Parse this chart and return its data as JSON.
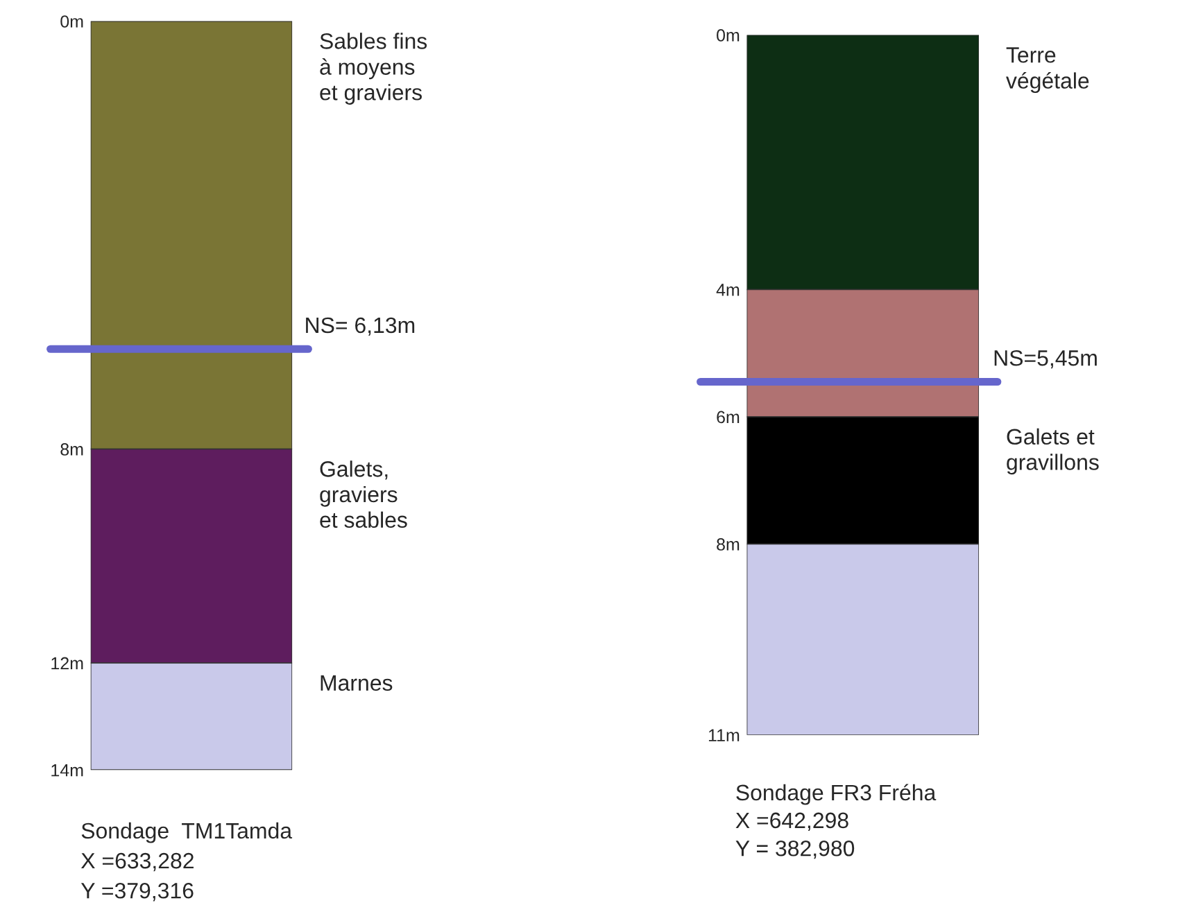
{
  "chart_data": [
    {
      "type": "bar",
      "stacked": true,
      "categories": [
        null
      ],
      "tick_labels": "y",
      "series": [
        {
          "name": "Sables fins\nà moyens\net graviers",
          "color": "#7a7535",
          "values": [
            8
          ]
        },
        {
          "name": "Galets,\ngraviers\net sables",
          "color": "#5e1d5e",
          "values": [
            4
          ]
        },
        {
          "name": "Marnes",
          "color": "#c9c9ea",
          "values": [
            2
          ]
        }
      ],
      "ylim": [
        14,
        0
      ],
      "yticks": [
        {
          "value": 0,
          "label": "0m"
        },
        {
          "value": 8,
          "label": "8m"
        },
        {
          "value": 12,
          "label": "12m"
        },
        {
          "value": 14,
          "label": "14m"
        }
      ],
      "ref_lines": [
        {
          "axis": "y",
          "value": 6.13,
          "label": "NS= 6,13m",
          "color": "#6666cc"
        }
      ],
      "annotations": [
        "Sondage  TM1Tamda",
        "X =633,282",
        "Y =379,316"
      ]
    },
    {
      "type": "bar",
      "stacked": true,
      "categories": [
        null
      ],
      "tick_labels": "y",
      "series": [
        {
          "name": "Terre\nvégétale",
          "color": "#0d2e14",
          "values": [
            4
          ]
        },
        {
          "color": "#b07272",
          "values": [
            2
          ]
        },
        {
          "name": "Galets et\ngravillons",
          "color": "#000000",
          "values": [
            2
          ]
        },
        {
          "color": "#c9c9ea",
          "values": [
            3
          ]
        }
      ],
      "ylim": [
        11,
        0
      ],
      "yticks": [
        {
          "value": 0,
          "label": "0m"
        },
        {
          "value": 4,
          "label": "4m"
        },
        {
          "value": 6,
          "label": "6m"
        },
        {
          "value": 8,
          "label": "8m"
        },
        {
          "value": 11,
          "label": "11m"
        }
      ],
      "ref_lines": [
        {
          "axis": "y",
          "value": 5.45,
          "label": "NS=5,45m",
          "color": "#6666cc"
        }
      ],
      "annotations": [
        "Sondage FR3 Fréha",
        "X =642,298",
        "Y = 382,980"
      ]
    }
  ]
}
